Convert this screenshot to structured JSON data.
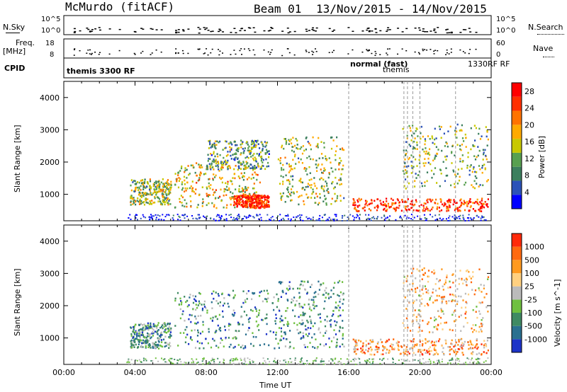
{
  "header": {
    "station": "McMurdo (fitACF)",
    "beam": "Beam 01",
    "date_range": "13/Nov/2015 - 14/Nov/2015"
  },
  "top_panels": {
    "nsky_label": "N.Sky",
    "nsky_ticks": [
      "10^5",
      "10^0"
    ],
    "nsearch_label": "N.Search",
    "nsearch_ticks": [
      "10^5",
      "10^0"
    ],
    "freq_label": "Freq.",
    "freq_unit": "[MHz]",
    "freq_ticks": [
      "18",
      "8"
    ],
    "nave_label": "Nave",
    "nave_ticks": [
      "60",
      "0"
    ],
    "cpid_label": "CPID",
    "cpid_main": "themis 3300 RF",
    "cpid_normal": "normal (fast)",
    "cpid_themis": "themis",
    "cpid_rf": "1330RF RF"
  },
  "colors": {
    "power": [
      "#0000ff",
      "#2b52b8",
      "#3c7f5e",
      "#58a050",
      "#c8c800",
      "#ffaa00",
      "#ff7300",
      "#ff3000",
      "#ff0000"
    ],
    "velocity": [
      "#1c33c8",
      "#2a7090",
      "#3f8a63",
      "#6fc040",
      "#bbbbbb",
      "#ffd080",
      "#ff9a20",
      "#ff6a10",
      "#ff2a0a"
    ]
  },
  "chart_data": [
    {
      "type": "heatmap",
      "title": "Power",
      "ylabel": "Slant Range [km]",
      "ylim": [
        180,
        4500
      ],
      "yticks": [
        1000,
        2000,
        3000,
        4000
      ],
      "xticks": [
        "00:00",
        "04:00",
        "08:00",
        "12:00",
        "16:00",
        "20:00",
        "00:00"
      ],
      "colorbar_label": "Power [dB]",
      "colorbar_ticks": [
        4,
        8,
        12,
        16,
        20,
        24,
        28
      ],
      "colorbar_range": [
        0,
        30
      ],
      "scatter_regions": [
        {
          "t": [
            3.7,
            6.0
          ],
          "r": [
            700,
            1500
          ],
          "level": 0.45
        },
        {
          "t": [
            6.2,
            11.0
          ],
          "r": [
            600,
            2000
          ],
          "level": 0.55
        },
        {
          "t": [
            8.0,
            11.5
          ],
          "r": [
            1800,
            2700
          ],
          "level": 0.35
        },
        {
          "t": [
            9.5,
            11.5
          ],
          "r": [
            600,
            1000
          ],
          "level": 0.9
        },
        {
          "t": [
            12.0,
            15.7
          ],
          "r": [
            700,
            2800
          ],
          "level": 0.45
        },
        {
          "t": [
            16.2,
            23.8
          ],
          "r": [
            500,
            900
          ],
          "level": 0.85
        },
        {
          "t": [
            19.0,
            23.8
          ],
          "r": [
            1200,
            3200
          ],
          "level": 0.4
        }
      ]
    },
    {
      "type": "heatmap",
      "title": "Velocity",
      "ylabel": "Slant Range [km]",
      "ylim": [
        180,
        4500
      ],
      "yticks": [
        1000,
        2000,
        3000,
        4000
      ],
      "xticks": [
        "00:00",
        "04:00",
        "08:00",
        "12:00",
        "16:00",
        "20:00",
        "00:00"
      ],
      "xlabel": "Time UT",
      "colorbar_label": "Velocity [m s^-1]",
      "colorbar_ticks": [
        1000,
        500,
        100,
        25,
        -25,
        -100,
        -500,
        -1000
      ],
      "scatter_regions": [
        {
          "t": [
            3.7,
            6.0
          ],
          "r": [
            700,
            1500
          ],
          "level": 0.3
        },
        {
          "t": [
            6.2,
            12.0
          ],
          "r": [
            700,
            2500
          ],
          "level": 0.25
        },
        {
          "t": [
            12.0,
            15.7
          ],
          "r": [
            700,
            2800
          ],
          "level": 0.3
        },
        {
          "t": [
            16.2,
            23.8
          ],
          "r": [
            500,
            1000
          ],
          "level": 0.7
        },
        {
          "t": [
            19.0,
            23.8
          ],
          "r": [
            1200,
            3200
          ],
          "level": 0.65
        }
      ]
    }
  ]
}
